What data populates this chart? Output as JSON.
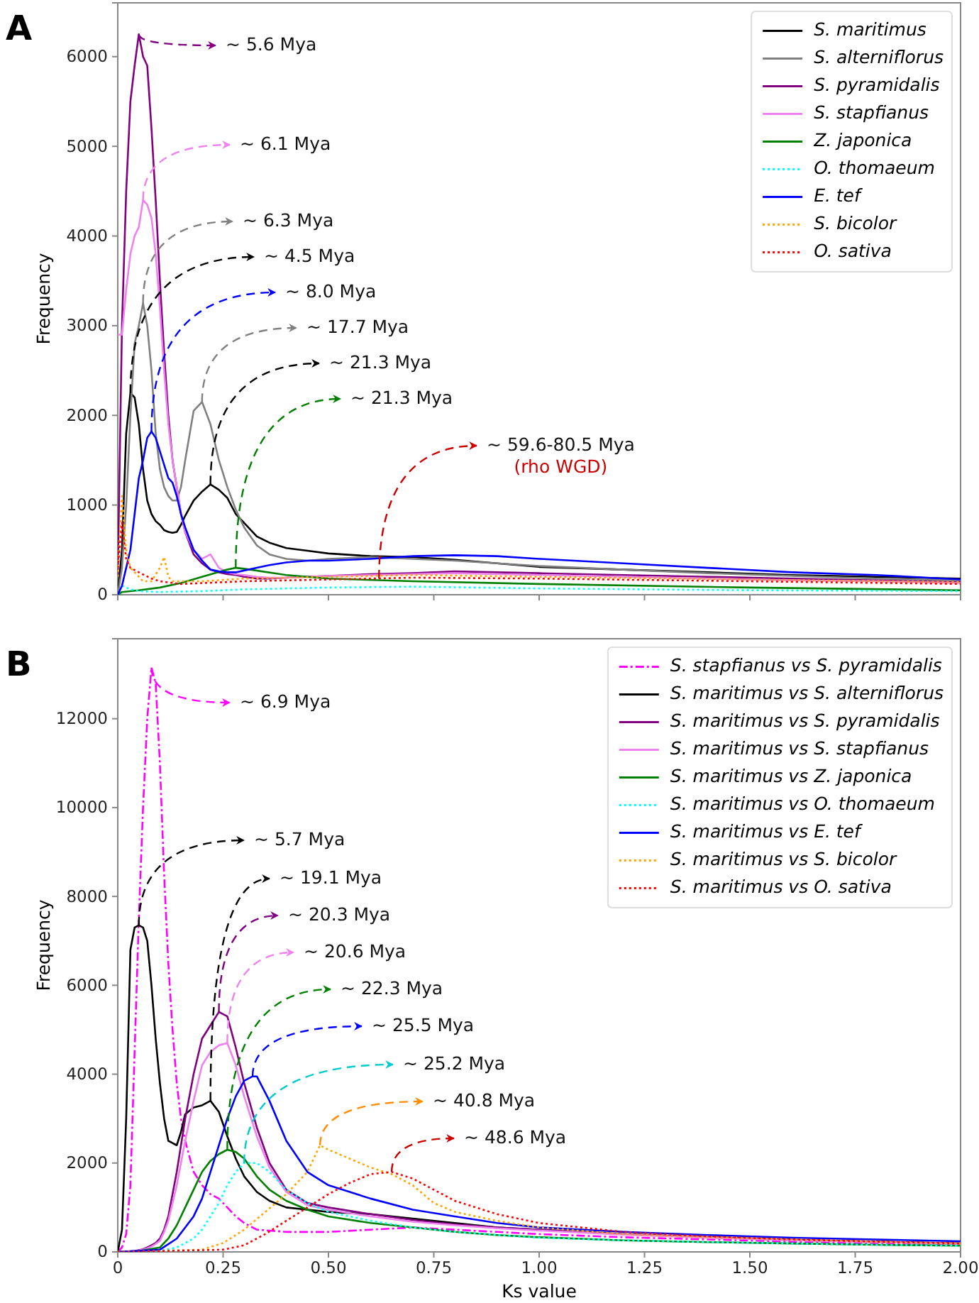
{
  "chart_data": [
    {
      "type": "line",
      "title": "A",
      "ylabel": "Frequency",
      "xlim": [
        0,
        2
      ],
      "ylim": [
        0,
        6600
      ],
      "xticks": [
        0,
        0.25,
        0.5,
        0.75,
        1,
        1.25,
        1.5,
        1.75,
        2
      ],
      "yticks": [
        0,
        1000,
        2000,
        3000,
        4000,
        5000,
        6000
      ],
      "tick_labels": "y",
      "legend": "top right",
      "x": [
        0,
        0.01,
        0.02,
        0.03,
        0.04,
        0.05,
        0.06,
        0.07,
        0.08,
        0.09,
        0.1,
        0.11,
        0.12,
        0.13,
        0.14,
        0.15,
        0.16,
        0.18,
        0.2,
        0.22,
        0.24,
        0.26,
        0.28,
        0.3,
        0.33,
        0.36,
        0.4,
        0.45,
        0.5,
        0.6,
        0.7,
        0.8,
        0.9,
        1.0,
        1.2,
        1.4,
        1.6,
        1.8,
        2.0
      ],
      "series": [
        {
          "name": "S. maritimus",
          "color": "#000000",
          "line_style": "solid",
          "values": [
            0,
            500,
            1800,
            2250,
            2200,
            1900,
            1400,
            1050,
            900,
            820,
            780,
            720,
            700,
            690,
            700,
            780,
            880,
            1050,
            1150,
            1230,
            1170,
            1080,
            900,
            800,
            650,
            580,
            520,
            490,
            460,
            430,
            420,
            390,
            350,
            310,
            280,
            250,
            220,
            200,
            180
          ]
        },
        {
          "name": "S. alterniflorus",
          "color": "#808080",
          "line_style": "solid",
          "values": [
            0,
            300,
            1000,
            2000,
            2800,
            3000,
            3250,
            3000,
            2500,
            1800,
            1400,
            1200,
            1100,
            1050,
            1050,
            1200,
            1500,
            2050,
            2150,
            1900,
            1500,
            1200,
            950,
            750,
            550,
            450,
            400,
            380,
            400,
            420,
            400,
            380,
            350,
            320,
            280,
            240,
            210,
            180,
            160
          ]
        },
        {
          "name": "S. pyramidalis",
          "color": "#800080",
          "line_style": "solid",
          "values": [
            200,
            3000,
            4500,
            5500,
            5900,
            6250,
            6000,
            5900,
            5200,
            4400,
            3500,
            2700,
            2000,
            1500,
            1200,
            900,
            700,
            450,
            350,
            280,
            250,
            230,
            220,
            200,
            180,
            180,
            190,
            200,
            210,
            230,
            240,
            260,
            250,
            240,
            220,
            200,
            180,
            160,
            140
          ]
        },
        {
          "name": "S. stapfianus",
          "color": "#ee82ee",
          "line_style": "solid",
          "values": [
            2900,
            2900,
            3400,
            3800,
            4000,
            4100,
            4400,
            4350,
            4200,
            3800,
            3200,
            2500,
            1900,
            1500,
            1200,
            900,
            700,
            500,
            400,
            450,
            300,
            250,
            230,
            220,
            200,
            190,
            190,
            200,
            210,
            220,
            230,
            240,
            230,
            220,
            200,
            180,
            160,
            150,
            130
          ]
        },
        {
          "name": "Z. japonica",
          "color": "#008000",
          "line_style": "solid",
          "x": [
            0,
            0.01,
            0.05,
            0.1,
            0.15,
            0.2,
            0.26,
            0.28,
            0.3,
            0.4,
            0.5,
            0.7,
            1.0,
            1.5,
            2.0
          ],
          "values": [
            0,
            30,
            50,
            80,
            130,
            200,
            280,
            300,
            290,
            220,
            180,
            150,
            120,
            80,
            50
          ]
        },
        {
          "name": "O. thomaeum",
          "color": "#00ffff",
          "line_style": "dotted",
          "x": [
            0,
            0.01,
            0.02,
            0.03,
            0.05,
            0.1,
            0.2,
            0.3,
            0.5,
            0.7,
            1.0,
            1.5,
            2.0
          ],
          "values": [
            0,
            100,
            80,
            60,
            40,
            30,
            40,
            60,
            80,
            90,
            70,
            50,
            40
          ]
        },
        {
          "name": "E. tef",
          "color": "#0000ff",
          "line_style": "solid",
          "values": [
            0,
            100,
            300,
            500,
            900,
            1300,
            1500,
            1750,
            1820,
            1750,
            1600,
            1450,
            1300,
            1250,
            1100,
            900,
            750,
            500,
            380,
            280,
            260,
            250,
            250,
            270,
            300,
            330,
            360,
            380,
            380,
            400,
            430,
            440,
            430,
            400,
            350,
            300,
            250,
            220,
            170
          ]
        },
        {
          "name": "S. bicolor",
          "color": "#ffa500",
          "line_style": "dotted",
          "x": [
            0,
            0.01,
            0.02,
            0.03,
            0.04,
            0.05,
            0.06,
            0.08,
            0.1,
            0.11,
            0.12,
            0.13,
            0.15,
            0.2,
            0.3,
            0.5,
            0.7,
            1.0,
            1.5,
            2.0
          ],
          "values": [
            200,
            1100,
            500,
            300,
            250,
            200,
            150,
            150,
            300,
            420,
            200,
            150,
            150,
            150,
            180,
            200,
            220,
            200,
            170,
            140
          ]
        },
        {
          "name": "O. sativa",
          "color": "#ff0000",
          "line_style": "dotted",
          "x": [
            0,
            0.01,
            0.02,
            0.03,
            0.05,
            0.08,
            0.1,
            0.15,
            0.2,
            0.3,
            0.5,
            0.7,
            1.0,
            1.5,
            2.0
          ],
          "values": [
            300,
            800,
            400,
            300,
            250,
            180,
            150,
            120,
            130,
            150,
            170,
            190,
            180,
            150,
            120
          ]
        }
      ],
      "annotations": [
        {
          "text": "~ 5.6 Mya",
          "x": 0.05,
          "y": 6250
        },
        {
          "text": "~ 6.1 Mya",
          "x": 0.06,
          "y": 4400
        },
        {
          "text": "~ 6.3 Mya",
          "x": 0.06,
          "y": 3250
        },
        {
          "text": "~ 4.5 Mya",
          "x": 0.03,
          "y": 2250
        },
        {
          "text": "~ 8.0 Mya",
          "x": 0.08,
          "y": 1820
        },
        {
          "text": "~ 17.7 Mya",
          "x": 0.2,
          "y": 2150
        },
        {
          "text": "~ 21.3 Mya",
          "x": 0.22,
          "y": 1230
        },
        {
          "text": "~ 21.3 Mya",
          "x": 0.28,
          "y": 300
        },
        {
          "text": "~ 59.6-80.5 Mya",
          "x": 0.62,
          "y": 180
        },
        "(rho WGD)"
      ]
    },
    {
      "type": "line",
      "title": "B",
      "xlabel": "Ks value",
      "ylabel": "Frequency",
      "xlim": [
        0,
        2
      ],
      "ylim": [
        0,
        13800
      ],
      "xticks": [
        {
          "value": 0,
          "label": "0"
        },
        0.25,
        {
          "value": 0.5,
          "label": "0.50"
        },
        0.75,
        {
          "value": 1,
          "label": "1.00"
        },
        1.25,
        {
          "value": 1.5,
          "label": "1.50"
        },
        1.75,
        {
          "value": 2,
          "label": "2.00"
        }
      ],
      "yticks": [
        0,
        2000,
        4000,
        6000,
        8000,
        10000,
        12000
      ],
      "legend": "top right",
      "x": [
        0,
        0.01,
        0.02,
        0.03,
        0.04,
        0.05,
        0.06,
        0.07,
        0.08,
        0.09,
        0.1,
        0.11,
        0.12,
        0.13,
        0.14,
        0.15,
        0.16,
        0.18,
        0.2,
        0.22,
        0.24,
        0.26,
        0.28,
        0.3,
        0.33,
        0.36,
        0.4,
        0.45,
        0.5,
        0.6,
        0.7,
        0.8,
        0.9,
        1.0,
        1.2,
        1.4,
        1.6,
        1.8,
        2.0
      ],
      "series": [
        {
          "name": "S. stapfianus vs S. pyramidalis",
          "color": "#ff00ff",
          "line_style": "dashdot",
          "values": [
            0,
            100,
            400,
            1500,
            4500,
            7500,
            10000,
            12000,
            13150,
            12800,
            11000,
            8500,
            6500,
            5000,
            3800,
            3000,
            2500,
            1800,
            1500,
            1300,
            1200,
            1000,
            800,
            650,
            500,
            480,
            450,
            450,
            450,
            500,
            550,
            500,
            450,
            400,
            330,
            280,
            230,
            190,
            150
          ]
        },
        {
          "name": "S. maritimus vs S. alterniflorus",
          "color": "#000000",
          "line_style": "solid",
          "values": [
            0,
            500,
            3000,
            6800,
            7300,
            7350,
            7300,
            7000,
            6000,
            4800,
            3800,
            3000,
            2500,
            2450,
            2400,
            2700,
            3100,
            3250,
            3300,
            3400,
            3150,
            2600,
            2100,
            1700,
            1350,
            1150,
            1000,
            950,
            900,
            850,
            750,
            650,
            550,
            500,
            400,
            330,
            270,
            230,
            190
          ]
        },
        {
          "name": "S. maritimus vs S. pyramidalis",
          "color": "#800080",
          "line_style": "solid",
          "values": [
            null,
            null,
            null,
            10,
            20,
            40,
            60,
            100,
            150,
            200,
            300,
            500,
            800,
            1300,
            1800,
            2400,
            3000,
            4000,
            4800,
            5100,
            5400,
            5300,
            4600,
            3800,
            2800,
            2000,
            1400,
            1100,
            1000,
            850,
            720,
            620,
            550,
            500,
            400,
            330,
            270,
            230,
            190
          ]
        },
        {
          "name": "S. maritimus vs S. stapfianus",
          "color": "#ee82ee",
          "line_style": "solid",
          "values": [
            0,
            0,
            0,
            10,
            20,
            30,
            50,
            80,
            120,
            180,
            250,
            450,
            700,
            1100,
            1500,
            2000,
            2500,
            3400,
            4200,
            4500,
            4650,
            4700,
            4200,
            3500,
            2600,
            1900,
            1350,
            1050,
            950,
            800,
            680,
            600,
            530,
            480,
            390,
            320,
            260,
            220,
            180
          ]
        },
        {
          "name": "S. maritimus vs Z. japonica",
          "color": "#008000",
          "line_style": "solid",
          "x": [
            0,
            0.05,
            0.1,
            0.12,
            0.14,
            0.16,
            0.18,
            0.2,
            0.22,
            0.24,
            0.26,
            0.28,
            0.3,
            0.33,
            0.36,
            0.4,
            0.45,
            0.5,
            0.6,
            0.7,
            0.8,
            0.9,
            1.0,
            1.2,
            1.4,
            1.6,
            1.8,
            2.0
          ],
          "values": [
            0,
            20,
            100,
            300,
            600,
            1000,
            1400,
            1800,
            2050,
            2200,
            2300,
            2250,
            2100,
            1700,
            1400,
            1150,
            950,
            800,
            650,
            550,
            450,
            380,
            330,
            260,
            220,
            190,
            160,
            140
          ]
        },
        {
          "name": "S. maritimus vs O. thomaeum",
          "color": "#00ffff",
          "line_style": "dotted",
          "x": [
            0,
            0.1,
            0.14,
            0.18,
            0.2,
            0.22,
            0.24,
            0.26,
            0.28,
            0.3,
            0.33,
            0.36,
            0.4,
            0.45,
            0.5,
            0.6,
            0.7,
            0.8,
            0.9,
            1.0,
            1.2,
            1.4,
            1.6,
            1.8,
            2.0
          ],
          "values": [
            0,
            20,
            100,
            300,
            500,
            800,
            1100,
            1500,
            1800,
            2000,
            2000,
            1800,
            1400,
            1100,
            900,
            700,
            550,
            450,
            380,
            320,
            260,
            220,
            190,
            160,
            140
          ]
        },
        {
          "name": "S. maritimus vs E. tef",
          "color": "#0000ff",
          "line_style": "solid",
          "x": [
            0,
            0.1,
            0.14,
            0.18,
            0.2,
            0.22,
            0.24,
            0.26,
            0.28,
            0.3,
            0.32,
            0.33,
            0.36,
            0.4,
            0.45,
            0.5,
            0.6,
            0.7,
            0.8,
            0.9,
            1.0,
            1.2,
            1.4,
            1.6,
            1.8,
            2.0
          ],
          "values": [
            0,
            50,
            300,
            800,
            1200,
            1800,
            2400,
            3000,
            3500,
            3850,
            3950,
            3950,
            3400,
            2500,
            1800,
            1500,
            1200,
            950,
            800,
            650,
            550,
            450,
            380,
            320,
            280,
            240
          ]
        },
        {
          "name": "S. maritimus vs S. bicolor",
          "color": "#ffa500",
          "line_style": "dotted",
          "x": [
            0,
            0.2,
            0.25,
            0.3,
            0.35,
            0.4,
            0.45,
            0.48,
            0.5,
            0.55,
            0.6,
            0.65,
            0.7,
            0.75,
            0.8,
            0.9,
            1.0,
            1.2,
            1.4,
            1.6,
            1.8,
            2.0
          ],
          "values": [
            0,
            50,
            200,
            500,
            900,
            1300,
            1800,
            2400,
            2300,
            2100,
            1900,
            1750,
            1500,
            1100,
            900,
            700,
            550,
            400,
            330,
            280,
            230,
            190
          ]
        },
        {
          "name": "S. maritimus vs O. sativa",
          "color": "#ff0000",
          "line_style": "dotted",
          "x": [
            0,
            0.25,
            0.3,
            0.35,
            0.4,
            0.45,
            0.5,
            0.55,
            0.6,
            0.65,
            0.7,
            0.75,
            0.8,
            0.85,
            0.9,
            1.0,
            1.2,
            1.4,
            1.6,
            1.8,
            2.0
          ],
          "values": [
            0,
            50,
            150,
            400,
            700,
            1000,
            1300,
            1550,
            1750,
            1800,
            1650,
            1400,
            1150,
            1000,
            850,
            650,
            450,
            350,
            280,
            230,
            190
          ]
        }
      ],
      "annotations": [
        {
          "text": "~ 6.9 Mya",
          "x": 0.08,
          "y": 13150
        },
        {
          "text": "~ 5.7 Mya",
          "x": 0.05,
          "y": 7350
        },
        {
          "text": "~ 19.1 Mya",
          "x": 0.22,
          "y": 3400
        },
        {
          "text": "~ 20.3 Mya",
          "x": 0.24,
          "y": 5400
        },
        {
          "text": "~ 20.6 Mya",
          "x": 0.26,
          "y": 4700
        },
        {
          "text": "~ 22.3 Mya",
          "x": 0.26,
          "y": 2300
        },
        {
          "text": "~ 25.5 Mya",
          "x": 0.32,
          "y": 3950
        },
        {
          "text": "~ 25.2 Mya",
          "x": 0.3,
          "y": 2000
        },
        {
          "text": "~ 40.8 Mya",
          "x": 0.48,
          "y": 2400
        },
        {
          "text": "~ 48.6 Mya",
          "x": 0.65,
          "y": 1800
        }
      ]
    }
  ]
}
